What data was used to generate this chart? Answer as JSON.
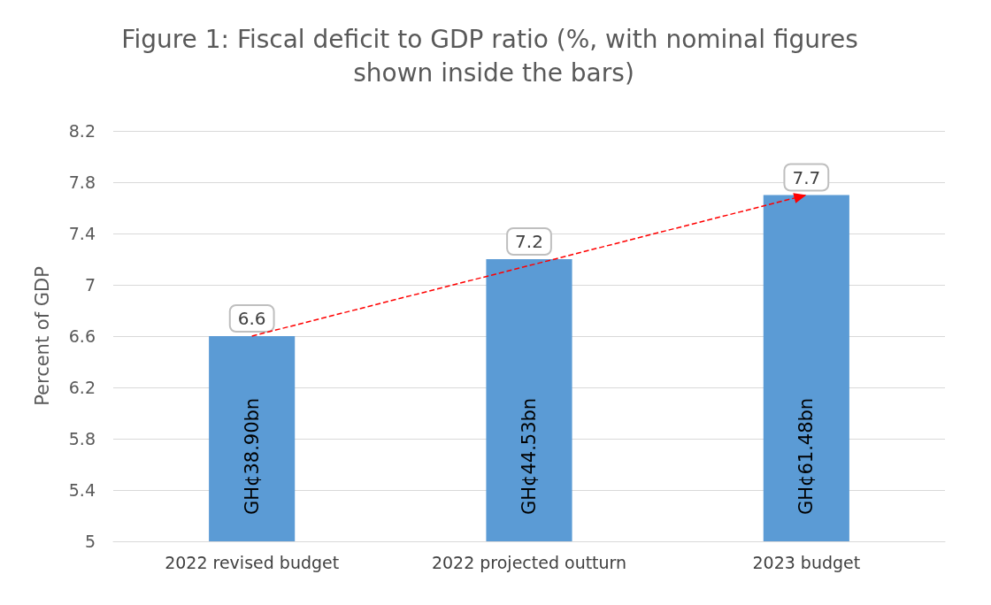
{
  "chart_data": {
    "type": "bar",
    "title": "Figure 1: Fiscal deficit to GDP ratio (%, with nominal figures shown inside the bars)",
    "ylabel": "Percent of GDP",
    "categories": [
      "2022 revised budget",
      "2022 projected outturn",
      "2023 budget"
    ],
    "series": [
      {
        "color": "#5b9bd5",
        "values": [
          6.6,
          7.2,
          7.7
        ],
        "value_labels": [
          "6.6",
          "7.2",
          "7.7"
        ]
      },
      {
        "type": "line",
        "color": "#ff0000",
        "x": [
          "2022 revised budget",
          "2023 budget"
        ],
        "values": [
          6.6,
          7.7
        ],
        "line_style": "dashed"
      }
    ],
    "ylim": [
      5,
      8.2
    ],
    "yticks": [
      5,
      5.4,
      5.8,
      6.2,
      6.6,
      7,
      7.4,
      7.8,
      8.2
    ],
    "grid": "y",
    "annotations": [
      "GH¢38.90bn",
      "GH¢44.53bn",
      "GH¢61.48bn"
    ]
  }
}
